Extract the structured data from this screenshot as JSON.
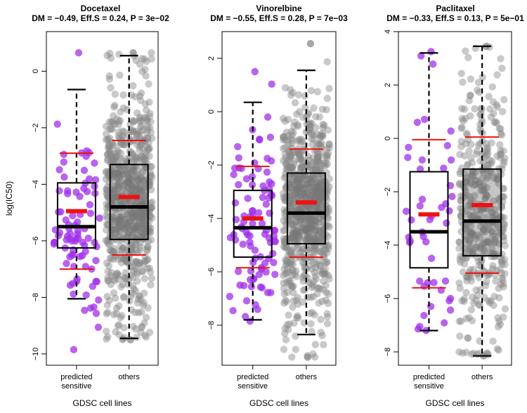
{
  "chart_data": [
    {
      "type": "box",
      "title": "Docetaxel",
      "subtitle": "DM = −0.49, Eff.S = 0.24, P = 3e−02",
      "xlabel": "GDSC cell lines",
      "ylabel": "log(IC50)",
      "ylim": [
        -10.4,
        1.4
      ],
      "yticks": [
        0,
        -2,
        -4,
        -6,
        -8,
        -10
      ],
      "ytick_labels": [
        "0",
        "−2",
        "−4",
        "−6",
        "−8",
        "−10"
      ],
      "categories": [
        "predicted\nsensitive",
        "others"
      ],
      "category_lines": [
        [
          "predicted",
          "sensitive"
        ],
        [
          "others"
        ]
      ],
      "groups": [
        {
          "name": "predicted sensitive",
          "color": "#a030e8",
          "n": 85,
          "min": -8.05,
          "q1": -6.25,
          "median": -5.5,
          "q3": -3.95,
          "max": -0.65,
          "mean": -4.95,
          "sd_low": -7.0,
          "sd_high": -2.9,
          "points_lo": -9.85,
          "points_hi": 0.65
        },
        {
          "name": "others",
          "color": "#888888",
          "n": 700,
          "min": -9.45,
          "q1": -5.95,
          "median": -4.8,
          "q3": -3.3,
          "max": 0.55,
          "mean": -4.45,
          "sd_low": -6.5,
          "sd_high": -2.45,
          "points_lo": -9.5,
          "points_hi": 0.65
        }
      ]
    },
    {
      "type": "box",
      "title": "Vinorelbine",
      "subtitle": "DM = −0.55, Eff.S = 0.28, P = 7e−03",
      "xlabel": "GDSC cell lines",
      "ylabel": "",
      "ylim": [
        -9.5,
        3.0
      ],
      "yticks": [
        2,
        0,
        -2,
        -4,
        -6,
        -8
      ],
      "ytick_labels": [
        "2",
        "0",
        "−2",
        "−4",
        "−6",
        "−8"
      ],
      "categories": [
        "predicted\nsensitive",
        "others"
      ],
      "category_lines": [
        [
          "predicted",
          "sensitive"
        ],
        [
          "others"
        ]
      ],
      "groups": [
        {
          "name": "predicted sensitive",
          "color": "#a030e8",
          "n": 95,
          "min": -7.8,
          "q1": -5.45,
          "median": -4.35,
          "q3": -2.95,
          "max": 0.35,
          "mean": -4.0,
          "sd_low": -5.85,
          "sd_high": -2.05,
          "points_lo": -7.85,
          "points_hi": 1.5
        },
        {
          "name": "others",
          "color": "#888888",
          "n": 700,
          "min": -8.35,
          "q1": -4.95,
          "median": -3.8,
          "q3": -2.3,
          "max": 1.55,
          "mean": -3.4,
          "sd_low": -5.45,
          "sd_high": -1.4,
          "points_lo": -9.2,
          "points_hi": 2.55
        }
      ]
    },
    {
      "type": "box",
      "title": "Paclitaxel",
      "subtitle": "DM = −0.33, Eff.S = 0.13, P = 5e−01",
      "xlabel": "GDSC cell lines",
      "ylabel": "",
      "ylim": [
        -8.5,
        4.0
      ],
      "yticks": [
        4,
        2,
        0,
        -2,
        -4,
        -6,
        -8
      ],
      "ytick_labels": [
        "4",
        "2",
        "0",
        "−2",
        "−4",
        "−6",
        "−8"
      ],
      "categories": [
        "predicted\nsensitive",
        "others"
      ],
      "category_lines": [
        [
          "predicted",
          "sensitive"
        ],
        [
          "others"
        ]
      ],
      "groups": [
        {
          "name": "predicted sensitive",
          "color": "#a030e8",
          "n": 45,
          "min": -7.2,
          "q1": -4.85,
          "median": -3.5,
          "q3": -1.25,
          "max": 3.2,
          "mean": -2.85,
          "sd_low": -5.6,
          "sd_high": -0.05,
          "points_lo": -7.2,
          "points_hi": 3.25
        },
        {
          "name": "others",
          "color": "#888888",
          "n": 420,
          "min": -8.15,
          "q1": -4.4,
          "median": -3.1,
          "q3": -1.15,
          "max": 3.45,
          "mean": -2.5,
          "sd_low": -5.05,
          "sd_high": 0.05,
          "points_lo": -8.15,
          "points_hi": 3.45
        }
      ]
    }
  ]
}
